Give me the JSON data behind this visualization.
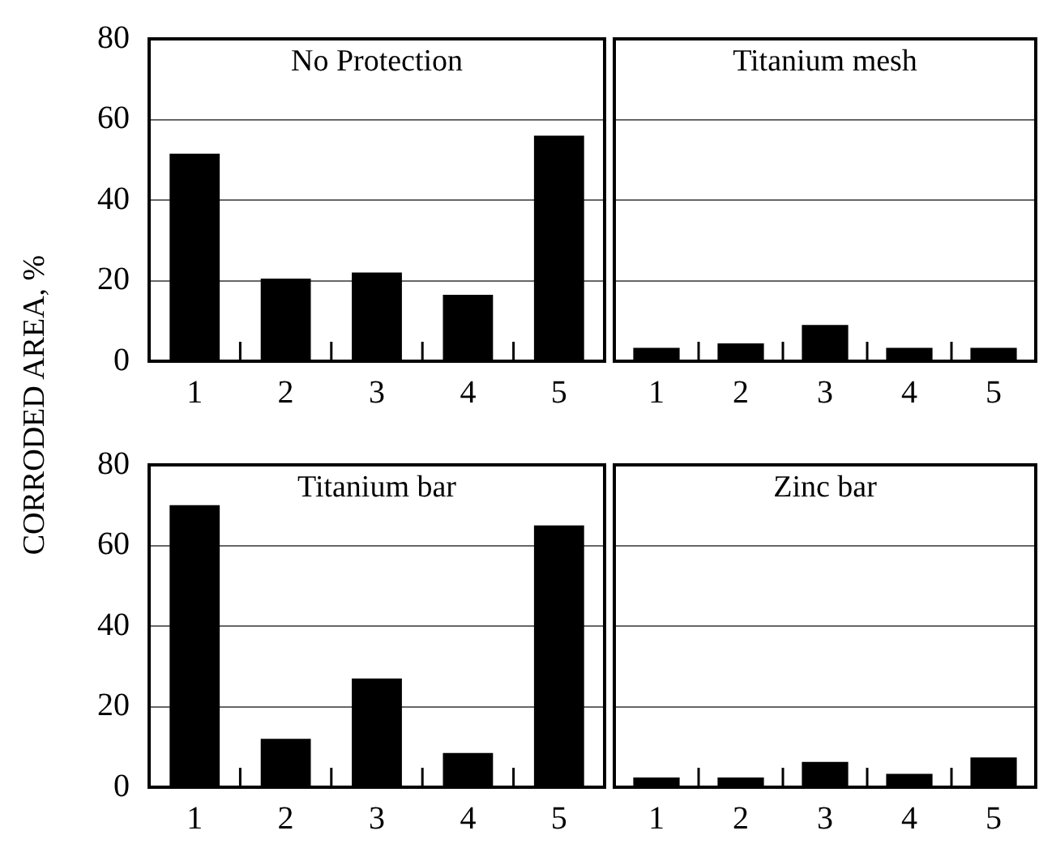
{
  "chart_data": [
    {
      "type": "bar",
      "title": "No Protection",
      "ylabel": "CORRODED AREA, %",
      "categories": [
        "1",
        "2",
        "3",
        "4",
        "5"
      ],
      "values": [
        51.5,
        20.5,
        22,
        16.5,
        56
      ],
      "color": "#000000",
      "ylim": [
        0,
        80
      ],
      "yticks": [
        0,
        20,
        40,
        60,
        80
      ],
      "grid": "y"
    },
    {
      "type": "bar",
      "title": "Titanium mesh",
      "categories": [
        "1",
        "2",
        "3",
        "4",
        "5"
      ],
      "values": [
        3.3,
        4.4,
        9,
        3.3,
        3.3
      ],
      "color": "#000000",
      "ylim": [
        0,
        80
      ],
      "yticks": [
        {
          "value": 0,
          "label": null
        },
        {
          "value": 20,
          "label": null
        },
        {
          "value": 40,
          "label": null
        },
        {
          "value": 60,
          "label": null
        },
        {
          "value": 80,
          "label": null
        }
      ],
      "grid": "y",
      "tick_labels": "x"
    },
    {
      "type": "bar",
      "title": "Titanium bar",
      "categories": [
        "1",
        "2",
        "3",
        "4",
        "5"
      ],
      "values": [
        70,
        12,
        27,
        8.5,
        65
      ],
      "color": "#000000",
      "ylim": [
        0,
        80
      ],
      "yticks": [
        0,
        20,
        40,
        60,
        80
      ],
      "grid": "y"
    },
    {
      "type": "bar",
      "title": "Zinc bar",
      "categories": [
        "1",
        "2",
        "3",
        "4",
        "5"
      ],
      "values": [
        2.4,
        2.4,
        6.3,
        3.3,
        7.4
      ],
      "color": "#000000",
      "ylim": [
        0,
        80
      ],
      "yticks": [
        {
          "value": 0,
          "label": null
        },
        {
          "value": 20,
          "label": null
        },
        {
          "value": 40,
          "label": null
        },
        {
          "value": 60,
          "label": null
        },
        {
          "value": 80,
          "label": null
        }
      ],
      "grid": "y",
      "tick_labels": "x"
    }
  ]
}
